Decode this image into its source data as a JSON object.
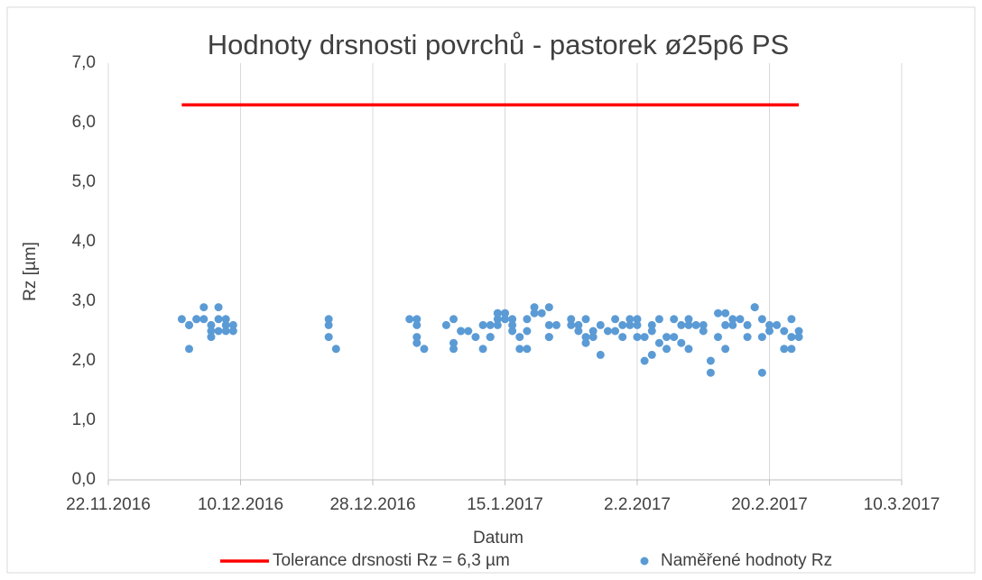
{
  "chart_data": {
    "type": "scatter",
    "title": "Hodnoty drsnosti povrchů - pastorek ø25p6 PS",
    "x_label": "Datum",
    "y_label": "Rz [µm]",
    "xlim": [
      "2016-11-22",
      "2017-03-10"
    ],
    "xticks": [
      {
        "value": "2016-11-22",
        "label": "22.11.2016"
      },
      {
        "value": "2016-12-10",
        "label": "10.12.2016"
      },
      {
        "value": "2016-12-28",
        "label": "28.12.2016"
      },
      {
        "value": "2017-01-15",
        "label": "15.1.2017"
      },
      {
        "value": "2017-02-02",
        "label": "2.2.2017"
      },
      {
        "value": "2017-02-20",
        "label": "20.2.2017"
      },
      {
        "value": "2017-03-10",
        "label": "10.3.2017"
      }
    ],
    "ylim": [
      0,
      7
    ],
    "yticks": [
      {
        "value": 0,
        "label": "0,0"
      },
      {
        "value": 1,
        "label": "1,0"
      },
      {
        "value": 2,
        "label": "2,0"
      },
      {
        "value": 3,
        "label": "3,0"
      },
      {
        "value": 4,
        "label": "4,0"
      },
      {
        "value": 5,
        "label": "5,0"
      },
      {
        "value": 6,
        "label": "6,0"
      },
      {
        "value": 7,
        "label": "7,0"
      }
    ],
    "grid": true,
    "legend": "bottom",
    "series": [
      {
        "name": "Tolerance drsnosti Rz = 6,3 µm",
        "type": "line",
        "color": "#ff0000",
        "x": [
          "2016-12-02",
          "2017-02-24"
        ],
        "values": [
          6.3,
          6.3
        ]
      },
      {
        "name": "Naměřené hodnoty Rz",
        "type": "scatter",
        "color": "#5b9bd5",
        "x": [
          "2016-12-02",
          "2016-12-03",
          "2016-12-03",
          "2016-12-03",
          "2016-12-04",
          "2016-12-04",
          "2016-12-05",
          "2016-12-05",
          "2016-12-06",
          "2016-12-06",
          "2016-12-06",
          "2016-12-07",
          "2016-12-07",
          "2016-12-07",
          "2016-12-08",
          "2016-12-08",
          "2016-12-08",
          "2016-12-09",
          "2016-12-09",
          "2016-12-22",
          "2016-12-22",
          "2016-12-22",
          "2016-12-23",
          "2017-01-02",
          "2017-01-03",
          "2017-01-03",
          "2017-01-03",
          "2017-01-03",
          "2017-01-04",
          "2017-01-07",
          "2017-01-08",
          "2017-01-08",
          "2017-01-08",
          "2017-01-09",
          "2017-01-09",
          "2017-01-10",
          "2017-01-11",
          "2017-01-12",
          "2017-01-12",
          "2017-01-13",
          "2017-01-13",
          "2017-01-13",
          "2017-01-14",
          "2017-01-14",
          "2017-01-14",
          "2017-01-14",
          "2017-01-15",
          "2017-01-15",
          "2017-01-15",
          "2017-01-16",
          "2017-01-16",
          "2017-01-16",
          "2017-01-17",
          "2017-01-17",
          "2017-01-18",
          "2017-01-18",
          "2017-01-18",
          "2017-01-19",
          "2017-01-19",
          "2017-01-20",
          "2017-01-21",
          "2017-01-21",
          "2017-01-21",
          "2017-01-21",
          "2017-01-22",
          "2017-01-24",
          "2017-01-24",
          "2017-01-25",
          "2017-01-25",
          "2017-01-26",
          "2017-01-26",
          "2017-01-26",
          "2017-01-27",
          "2017-01-27",
          "2017-01-28",
          "2017-01-28",
          "2017-01-29",
          "2017-01-30",
          "2017-01-30",
          "2017-01-31",
          "2017-01-31",
          "2017-02-01",
          "2017-02-01",
          "2017-02-02",
          "2017-02-02",
          "2017-02-02",
          "2017-02-03",
          "2017-02-03",
          "2017-02-04",
          "2017-02-04",
          "2017-02-04",
          "2017-02-05",
          "2017-02-05",
          "2017-02-06",
          "2017-02-06",
          "2017-02-07",
          "2017-02-07",
          "2017-02-08",
          "2017-02-08",
          "2017-02-09",
          "2017-02-09",
          "2017-02-09",
          "2017-02-10",
          "2017-02-11",
          "2017-02-11",
          "2017-02-12",
          "2017-02-12",
          "2017-02-13",
          "2017-02-13",
          "2017-02-14",
          "2017-02-14",
          "2017-02-14",
          "2017-02-15",
          "2017-02-15",
          "2017-02-16",
          "2017-02-17",
          "2017-02-17",
          "2017-02-18",
          "2017-02-18",
          "2017-02-19",
          "2017-02-19",
          "2017-02-19",
          "2017-02-20",
          "2017-02-20",
          "2017-02-21",
          "2017-02-22",
          "2017-02-22",
          "2017-02-23",
          "2017-02-23",
          "2017-02-23",
          "2017-02-24",
          "2017-02-24"
        ],
        "values": [
          2.7,
          2.6,
          2.6,
          2.2,
          2.7,
          2.7,
          2.7,
          2.9,
          2.4,
          2.5,
          2.6,
          2.9,
          2.5,
          2.7,
          2.6,
          2.7,
          2.5,
          2.6,
          2.5,
          2.7,
          2.4,
          2.6,
          2.2,
          2.7,
          2.3,
          2.4,
          2.6,
          2.7,
          2.2,
          2.6,
          2.7,
          2.2,
          2.3,
          2.5,
          2.5,
          2.5,
          2.4,
          2.6,
          2.2,
          2.4,
          2.6,
          2.4,
          2.8,
          2.7,
          2.6,
          2.8,
          2.7,
          2.8,
          2.8,
          2.6,
          2.7,
          2.5,
          2.4,
          2.2,
          2.7,
          2.2,
          2.5,
          2.9,
          2.8,
          2.8,
          2.4,
          2.6,
          2.9,
          2.4,
          2.6,
          2.7,
          2.6,
          2.5,
          2.6,
          2.4,
          2.3,
          2.7,
          2.5,
          2.4,
          2.1,
          2.6,
          2.5,
          2.5,
          2.7,
          2.4,
          2.6,
          2.7,
          2.6,
          2.7,
          2.4,
          2.6,
          2.4,
          2.0,
          2.6,
          2.5,
          2.1,
          2.7,
          2.3,
          2.4,
          2.2,
          2.4,
          2.7,
          2.6,
          2.3,
          2.7,
          2.6,
          2.2,
          2.6,
          2.5,
          2.6,
          1.8,
          2.0,
          2.4,
          2.8,
          2.6,
          2.2,
          2.8,
          2.6,
          2.7,
          2.7,
          2.4,
          2.6,
          2.9,
          2.9,
          2.7,
          1.8,
          2.4,
          2.5,
          2.6,
          2.6,
          2.5,
          2.2,
          2.4,
          2.7,
          2.2,
          2.5,
          2.4
        ]
      }
    ]
  }
}
